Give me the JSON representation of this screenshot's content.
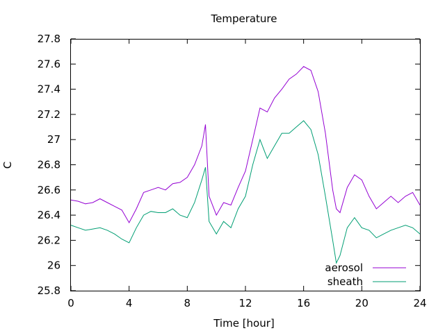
{
  "chart_data": {
    "type": "line",
    "title": "Temperature",
    "xlabel": "Time [hour]",
    "ylabel": "C",
    "xlim": [
      0,
      24
    ],
    "ylim": [
      25.8,
      27.8
    ],
    "x_ticks": [
      "0",
      "4",
      "8",
      "12",
      "16",
      "20",
      "24"
    ],
    "y_ticks": [
      "25.8",
      "26",
      "26.2",
      "26.4",
      "26.6",
      "26.8",
      "27",
      "27.2",
      "27.4",
      "27.6",
      "27.8"
    ],
    "grid": false,
    "legend_position": "bottom-right",
    "x": [
      0,
      0.5,
      1,
      1.5,
      2,
      2.5,
      3,
      3.5,
      4,
      4.5,
      5,
      5.5,
      6,
      6.5,
      7,
      7.5,
      8,
      8.5,
      9,
      9.25,
      9.5,
      10,
      10.5,
      11,
      11.5,
      12,
      12.5,
      13,
      13.5,
      14,
      14.5,
      15,
      15.5,
      16,
      16.5,
      17,
      17.5,
      18,
      18.25,
      18.5,
      19,
      19.5,
      20,
      20.5,
      21,
      21.5,
      22,
      22.5,
      23,
      23.5,
      24
    ],
    "series": [
      {
        "name": "aerosol",
        "color": "#9400d3",
        "values": [
          26.52,
          26.51,
          26.49,
          26.5,
          26.53,
          26.5,
          26.47,
          26.44,
          26.34,
          26.45,
          26.58,
          26.6,
          26.62,
          26.6,
          26.65,
          26.66,
          26.7,
          26.8,
          26.95,
          27.12,
          26.55,
          26.4,
          26.5,
          26.48,
          26.62,
          26.75,
          27.0,
          27.25,
          27.22,
          27.33,
          27.4,
          27.48,
          27.52,
          27.58,
          27.55,
          27.38,
          27.05,
          26.6,
          26.45,
          26.42,
          26.62,
          26.72,
          26.68,
          26.55,
          26.45,
          26.5,
          26.55,
          26.5,
          26.55,
          26.58,
          26.48
        ]
      },
      {
        "name": "sheath",
        "color": "#009e73",
        "values": [
          26.32,
          26.3,
          26.28,
          26.29,
          26.3,
          26.28,
          26.25,
          26.21,
          26.18,
          26.3,
          26.4,
          26.43,
          26.42,
          26.42,
          26.45,
          26.4,
          26.38,
          26.5,
          26.68,
          26.78,
          26.35,
          26.25,
          26.35,
          26.3,
          26.45,
          26.55,
          26.8,
          27.0,
          26.85,
          26.95,
          27.05,
          27.05,
          27.1,
          27.15,
          27.08,
          26.88,
          26.55,
          26.2,
          26.02,
          26.08,
          26.3,
          26.38,
          26.3,
          26.28,
          26.22,
          26.25,
          26.28,
          26.3,
          26.32,
          26.3,
          26.25
        ]
      }
    ]
  }
}
